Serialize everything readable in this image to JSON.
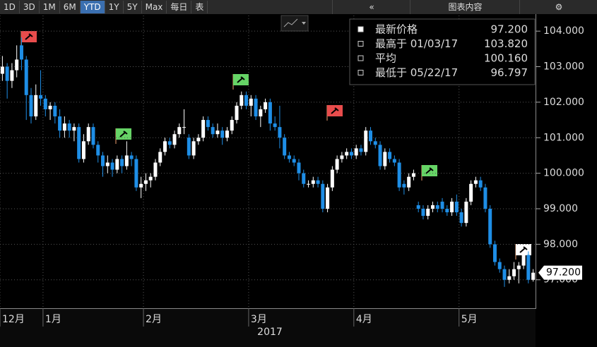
{
  "toolbar": {
    "buttons": [
      "1D",
      "3D",
      "1M",
      "6M",
      "YTD",
      "1Y",
      "5Y",
      "Max",
      "每日",
      "表"
    ],
    "selected": "YTD",
    "right": [
      "«",
      "图表内容",
      "⚙"
    ]
  },
  "chart_data": {
    "type": "candlestick",
    "x_label": "2017",
    "categories": [
      "12月",
      null,
      null,
      null,
      null,
      null,
      null,
      null,
      null,
      "1月",
      null,
      null,
      null,
      null,
      null,
      null,
      null,
      null,
      null,
      null,
      null,
      null,
      null,
      null,
      null,
      null,
      null,
      null,
      null,
      null,
      "2月",
      null,
      null,
      null,
      null,
      null,
      null,
      null,
      null,
      null,
      null,
      null,
      null,
      null,
      null,
      null,
      null,
      null,
      null,
      null,
      null,
      null,
      "3月",
      null,
      null,
      null,
      null,
      null,
      null,
      null,
      null,
      null,
      null,
      null,
      null,
      null,
      null,
      null,
      null,
      null,
      null,
      null,
      null,
      null,
      "4月",
      null,
      null,
      null,
      null,
      null,
      null,
      null,
      null,
      null,
      null,
      null,
      null,
      null,
      null,
      null,
      null,
      null,
      null,
      null,
      null,
      null,
      "5月",
      null,
      null,
      null,
      null,
      null,
      null,
      null,
      null,
      null,
      null,
      null,
      null,
      null,
      null,
      null
    ],
    "open": [
      102.8,
      103.0,
      102.6,
      102.9,
      103.6,
      103.2,
      102.2,
      101.6,
      102.2,
      102.1,
      101.8,
      101.9,
      101.6,
      101.2,
      101.4,
      101.2,
      101.3,
      100.4,
      100.9,
      101.3,
      100.8,
      100.5,
      100.2,
      100.3,
      100.1,
      100.4,
      100.2,
      100.5,
      100.4,
      99.6,
      99.7,
      99.8,
      99.9,
      100.3,
      100.6,
      100.9,
      100.8,
      101.1,
      101.3,
      101.0,
      100.5,
      100.9,
      101.0,
      101.5,
      101.3,
      101.1,
      101.2,
      101.0,
      101.2,
      101.5,
      101.9,
      102.2,
      101.9,
      102.1,
      101.6,
      101.8,
      102.0,
      101.4,
      101.3,
      101.0,
      100.5,
      100.4,
      100.3,
      100.0,
      99.7,
      99.7,
      99.8,
      99.7,
      99.0,
      99.6,
      100.1,
      100.4,
      100.5,
      100.6,
      100.5,
      100.7,
      100.6,
      101.2,
      100.9,
      100.8,
      100.2,
      100.6,
      100.4,
      100.3,
      99.7,
      99.6,
      99.9,
      99.1,
      99.0,
      98.8,
      99.0,
      99.1,
      99.2,
      99.0,
      98.9,
      99.2,
      98.9,
      98.6,
      99.2,
      99.7,
      99.8,
      99.6,
      99.0,
      98.0,
      97.5,
      97.3,
      97.0,
      97.1,
      97.3,
      97.4,
      97.7,
      97.0
    ],
    "high": [
      103.3,
      103.1,
      103.1,
      103.6,
      103.82,
      103.3,
      102.4,
      102.5,
      102.9,
      102.2,
      102.0,
      102.0,
      101.8,
      101.6,
      101.5,
      101.4,
      101.4,
      101.1,
      101.4,
      101.4,
      100.9,
      100.6,
      100.5,
      100.4,
      100.5,
      100.5,
      100.9,
      100.6,
      100.5,
      99.9,
      100.0,
      100.0,
      100.4,
      100.7,
      101.0,
      101.0,
      101.2,
      101.4,
      101.8,
      101.1,
      101.0,
      101.1,
      101.6,
      101.6,
      101.4,
      101.4,
      101.3,
      101.3,
      101.6,
      102.0,
      102.3,
      102.3,
      102.2,
      102.2,
      101.9,
      102.1,
      102.1,
      101.6,
      101.9,
      101.1,
      100.6,
      100.5,
      100.4,
      100.1,
      99.8,
      99.9,
      99.9,
      99.8,
      99.7,
      100.2,
      100.5,
      100.6,
      100.7,
      100.7,
      100.8,
      100.8,
      101.3,
      101.3,
      101.0,
      100.9,
      100.7,
      100.7,
      100.5,
      100.4,
      99.8,
      100.0,
      100.1,
      99.2,
      99.1,
      99.1,
      99.2,
      99.2,
      99.3,
      99.1,
      99.3,
      99.4,
      99.0,
      99.3,
      99.8,
      99.9,
      99.9,
      99.7,
      99.1,
      98.1,
      97.6,
      97.4,
      97.3,
      97.5,
      97.5,
      97.8,
      97.8,
      97.3
    ],
    "low": [
      102.6,
      102.1,
      102.4,
      102.7,
      102.9,
      101.5,
      101.4,
      101.5,
      101.9,
      101.6,
      101.5,
      101.4,
      101.0,
      101.0,
      101.0,
      100.9,
      100.3,
      100.3,
      100.8,
      100.7,
      100.3,
      99.9,
      100.0,
      99.9,
      100.0,
      100.0,
      100.1,
      100.2,
      99.5,
      99.3,
      99.5,
      99.6,
      99.8,
      100.2,
      100.5,
      100.7,
      100.7,
      101.0,
      101.1,
      100.4,
      100.4,
      100.8,
      100.9,
      101.2,
      101.0,
      101.0,
      100.8,
      100.9,
      101.1,
      101.4,
      101.8,
      101.8,
      101.6,
      101.5,
      101.3,
      101.7,
      101.2,
      101.2,
      100.7,
      100.4,
      100.3,
      100.2,
      99.8,
      99.6,
      99.6,
      99.6,
      99.6,
      98.9,
      98.9,
      99.5,
      100.0,
      100.3,
      100.4,
      100.4,
      100.4,
      100.5,
      100.5,
      100.8,
      100.7,
      100.1,
      100.1,
      100.3,
      100.2,
      99.5,
      99.4,
      99.5,
      99.8,
      98.9,
      98.7,
      98.7,
      98.9,
      98.9,
      98.9,
      98.8,
      98.8,
      98.8,
      98.5,
      98.5,
      99.1,
      99.6,
      99.5,
      98.9,
      97.9,
      97.4,
      97.2,
      96.8,
      96.9,
      97.0,
      96.9,
      97.3,
      96.9,
      96.95
    ],
    "close": [
      103.0,
      102.6,
      102.9,
      103.2,
      103.2,
      102.2,
      101.6,
      102.2,
      102.1,
      101.8,
      101.9,
      101.6,
      101.2,
      101.4,
      101.2,
      101.3,
      100.4,
      100.9,
      101.3,
      100.8,
      100.5,
      100.2,
      100.3,
      100.1,
      100.4,
      100.2,
      100.5,
      100.4,
      99.6,
      99.7,
      99.8,
      99.9,
      100.3,
      100.6,
      100.9,
      100.8,
      101.1,
      101.3,
      101.3,
      100.5,
      100.9,
      101.0,
      101.5,
      101.3,
      101.1,
      101.2,
      101.0,
      101.2,
      101.5,
      101.9,
      102.2,
      101.9,
      102.1,
      101.6,
      101.8,
      102.0,
      101.4,
      101.3,
      101.0,
      100.5,
      100.4,
      100.3,
      100.0,
      99.7,
      99.7,
      99.8,
      99.7,
      99.0,
      99.6,
      100.1,
      100.4,
      100.5,
      100.6,
      100.5,
      100.7,
      100.6,
      101.2,
      100.9,
      100.8,
      100.2,
      100.6,
      100.4,
      100.3,
      99.6,
      99.6,
      99.9,
      100.0,
      99.0,
      98.8,
      99.0,
      99.1,
      99.0,
      99.0,
      98.9,
      99.2,
      98.9,
      98.6,
      99.2,
      99.7,
      99.8,
      99.6,
      99.0,
      98.0,
      97.5,
      97.3,
      97.0,
      97.1,
      97.3,
      97.4,
      97.7,
      97.0,
      97.2
    ],
    "up_color": "#ffffff",
    "down_color": "#1e8ee6",
    "ylim": [
      96.2,
      104.44
    ],
    "yticks": [
      {
        "value": 97,
        "label": "97.000"
      },
      {
        "value": 98,
        "label": "98.000"
      },
      {
        "value": 99,
        "label": "99.000"
      },
      {
        "value": 100,
        "label": "100.000"
      },
      {
        "value": 101,
        "label": "101.000"
      },
      {
        "value": 102,
        "label": "102.000"
      },
      {
        "value": 103,
        "label": "103.000"
      },
      {
        "value": 104,
        "label": "104.000"
      }
    ],
    "grid": true,
    "last_price": {
      "value": 97.2,
      "label": "97.200"
    },
    "info": [
      {
        "label": "最新价格",
        "value": "97.200"
      },
      {
        "label": "最高于 01/03/17",
        "value": "103.820"
      },
      {
        "label": "平均",
        "value": "100.160"
      },
      {
        "label": "最低于 05/22/17",
        "value": "96.797"
      }
    ]
  }
}
